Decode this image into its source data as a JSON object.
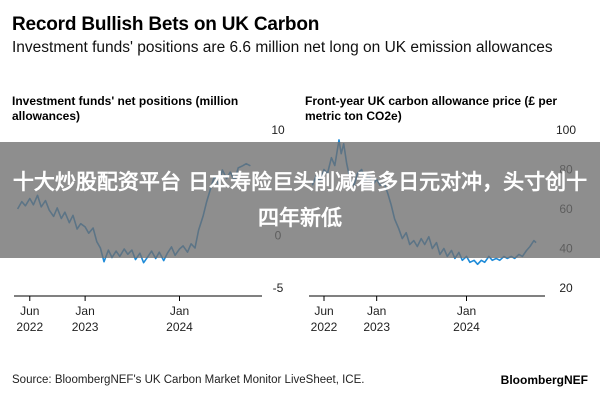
{
  "header": {
    "title": "Record Bullish Bets on UK Carbon",
    "subtitle": "Investment funds' positions are 6.6 million net long on UK emission allowances"
  },
  "overlay": {
    "text": "十大炒股配资平台 日本寿险巨头削减看多日元对冲，头寸创十四年新低"
  },
  "footer": {
    "source": "Source: BloombergNEF's UK Carbon Market Monitor LiveSheet, ICE.",
    "brand": "BloombergNEF"
  },
  "colors": {
    "line": "#1f8bd8",
    "axis": "#000000",
    "text": "#222222",
    "overlay": "#6e6e6e"
  },
  "chart_data": [
    {
      "type": "line",
      "title": "Investment funds' net positions (million allowances)",
      "x_ticks": [
        {
          "date": "2022-06-01",
          "line1": "Jun",
          "line2": "2022"
        },
        {
          "date": "2023-01-01",
          "line1": "Jan",
          "line2": "2023"
        },
        {
          "date": "2024-01-01",
          "line1": "Jan",
          "line2": "2024"
        }
      ],
      "y_ticks": [
        10,
        0,
        -5
      ],
      "ylim": [
        -5,
        10
      ],
      "xlim": [
        "2022-04-01",
        "2024-11-15"
      ],
      "grid": false,
      "series": [
        {
          "points": [
            [
              "2022-04-15",
              2.5
            ],
            [
              "2022-05-01",
              3.2
            ],
            [
              "2022-05-15",
              2.8
            ],
            [
              "2022-06-01",
              3.5
            ],
            [
              "2022-06-15",
              2.9
            ],
            [
              "2022-07-01",
              3.8
            ],
            [
              "2022-07-15",
              2.7
            ],
            [
              "2022-08-01",
              3.3
            ],
            [
              "2022-08-15",
              2.4
            ],
            [
              "2022-09-01",
              1.8
            ],
            [
              "2022-09-15",
              2.6
            ],
            [
              "2022-10-01",
              1.6
            ],
            [
              "2022-10-15",
              2.2
            ],
            [
              "2022-11-01",
              1.2
            ],
            [
              "2022-11-15",
              1.9
            ],
            [
              "2022-12-01",
              0.6
            ],
            [
              "2022-12-15",
              1.1
            ],
            [
              "2023-01-01",
              0.8
            ],
            [
              "2023-01-15",
              0.2
            ],
            [
              "2023-02-01",
              0.7
            ],
            [
              "2023-02-15",
              -0.6
            ],
            [
              "2023-03-01",
              -1.2
            ],
            [
              "2023-03-15",
              -2.5
            ],
            [
              "2023-04-01",
              -1.4
            ],
            [
              "2023-04-15",
              -2.1
            ],
            [
              "2023-05-01",
              -1.5
            ],
            [
              "2023-05-15",
              -2.0
            ],
            [
              "2023-06-01",
              -1.3
            ],
            [
              "2023-06-15",
              -1.8
            ],
            [
              "2023-07-01",
              -1.4
            ],
            [
              "2023-07-15",
              -2.3
            ],
            [
              "2023-08-01",
              -1.7
            ],
            [
              "2023-08-15",
              -2.6
            ],
            [
              "2023-09-01",
              -2.0
            ],
            [
              "2023-09-15",
              -1.5
            ],
            [
              "2023-10-01",
              -2.2
            ],
            [
              "2023-10-15",
              -1.6
            ],
            [
              "2023-11-01",
              -2.4
            ],
            [
              "2023-11-15",
              -1.7
            ],
            [
              "2023-12-01",
              -1.1
            ],
            [
              "2023-12-15",
              -1.9
            ],
            [
              "2024-01-01",
              -1.3
            ],
            [
              "2024-01-15",
              -1.0
            ],
            [
              "2024-02-01",
              -1.6
            ],
            [
              "2024-02-15",
              -0.8
            ],
            [
              "2024-03-01",
              -1.2
            ],
            [
              "2024-03-15",
              0.5
            ],
            [
              "2024-04-01",
              1.8
            ],
            [
              "2024-04-15",
              3.2
            ],
            [
              "2024-05-01",
              4.5
            ],
            [
              "2024-05-15",
              5.6
            ],
            [
              "2024-06-01",
              4.8
            ],
            [
              "2024-06-15",
              6.2
            ],
            [
              "2024-07-01",
              5.4
            ],
            [
              "2024-07-15",
              6.0
            ],
            [
              "2024-08-01",
              5.2
            ],
            [
              "2024-08-15",
              6.4
            ],
            [
              "2024-09-01",
              6.6
            ],
            [
              "2024-09-15",
              6.8
            ],
            [
              "2024-10-01",
              6.6
            ]
          ]
        }
      ]
    },
    {
      "type": "line",
      "title": "Front-year UK carbon allowance price (£ per metric ton CO2e)",
      "x_ticks": [
        {
          "date": "2022-06-01",
          "line1": "Jun",
          "line2": "2022"
        },
        {
          "date": "2023-01-01",
          "line1": "Jan",
          "line2": "2023"
        },
        {
          "date": "2024-01-01",
          "line1": "Jan",
          "line2": "2024"
        }
      ],
      "y_ticks": [
        100,
        80,
        60,
        40,
        20
      ],
      "ylim": [
        20,
        100
      ],
      "xlim": [
        "2022-04-01",
        "2024-11-15"
      ],
      "grid": false,
      "series": [
        {
          "points": [
            [
              "2022-04-15",
              72
            ],
            [
              "2022-05-01",
              77
            ],
            [
              "2022-05-15",
              74
            ],
            [
              "2022-06-01",
              80
            ],
            [
              "2022-06-15",
              78
            ],
            [
              "2022-07-01",
              86
            ],
            [
              "2022-07-15",
              82
            ],
            [
              "2022-08-01",
              95
            ],
            [
              "2022-08-10",
              88
            ],
            [
              "2022-08-20",
              93
            ],
            [
              "2022-09-01",
              83
            ],
            [
              "2022-09-15",
              75
            ],
            [
              "2022-10-01",
              72
            ],
            [
              "2022-10-15",
              78
            ],
            [
              "2022-11-01",
              80
            ],
            [
              "2022-11-15",
              74
            ],
            [
              "2022-12-01",
              77
            ],
            [
              "2022-12-15",
              72
            ],
            [
              "2023-01-01",
              75
            ],
            [
              "2023-01-15",
              72
            ],
            [
              "2023-02-01",
              73
            ],
            [
              "2023-02-15",
              68
            ],
            [
              "2023-03-01",
              62
            ],
            [
              "2023-03-15",
              55
            ],
            [
              "2023-04-01",
              50
            ],
            [
              "2023-04-15",
              45
            ],
            [
              "2023-05-01",
              48
            ],
            [
              "2023-05-15",
              42
            ],
            [
              "2023-06-01",
              44
            ],
            [
              "2023-06-15",
              41
            ],
            [
              "2023-07-01",
              45
            ],
            [
              "2023-07-15",
              42
            ],
            [
              "2023-08-01",
              46
            ],
            [
              "2023-08-15",
              40
            ],
            [
              "2023-09-01",
              43
            ],
            [
              "2023-09-15",
              37
            ],
            [
              "2023-10-01",
              40
            ],
            [
              "2023-10-15",
              36
            ],
            [
              "2023-11-01",
              39
            ],
            [
              "2023-11-15",
              35
            ],
            [
              "2023-12-01",
              38
            ],
            [
              "2023-12-15",
              34
            ],
            [
              "2024-01-01",
              36
            ],
            [
              "2024-01-15",
              33
            ],
            [
              "2024-02-01",
              34
            ],
            [
              "2024-02-15",
              32
            ],
            [
              "2024-03-01",
              34
            ],
            [
              "2024-03-15",
              33
            ],
            [
              "2024-04-01",
              36
            ],
            [
              "2024-04-15",
              34
            ],
            [
              "2024-05-01",
              35
            ],
            [
              "2024-05-15",
              34
            ],
            [
              "2024-06-01",
              36
            ],
            [
              "2024-06-15",
              35
            ],
            [
              "2024-07-01",
              36
            ],
            [
              "2024-07-15",
              35
            ],
            [
              "2024-08-01",
              37
            ],
            [
              "2024-08-15",
              36
            ],
            [
              "2024-09-01",
              39
            ],
            [
              "2024-09-15",
              41
            ],
            [
              "2024-10-01",
              44
            ],
            [
              "2024-10-10",
              43
            ]
          ]
        }
      ]
    }
  ]
}
